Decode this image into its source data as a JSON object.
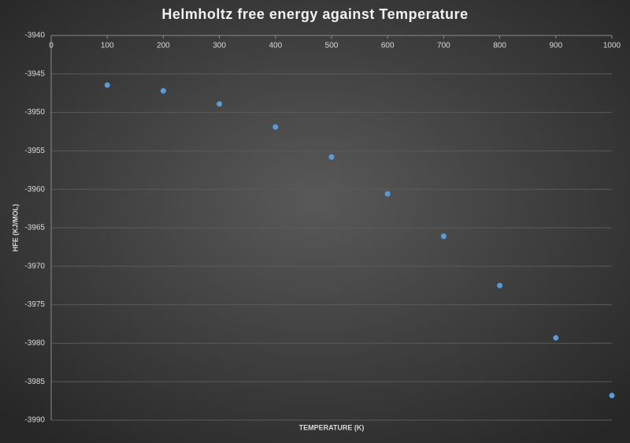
{
  "chart_data": {
    "type": "scatter",
    "title": "Helmholtz free energy against Temperature",
    "x_label": "TEMPERATURE (K)",
    "y_label": "HFE (KJ/MOL)",
    "x": [
      100,
      200,
      300,
      400,
      500,
      600,
      700,
      800,
      900,
      1000
    ],
    "values": [
      -3946.45,
      -3947.2,
      -3948.9,
      -3951.9,
      -3955.8,
      -3960.6,
      -3966.1,
      -3972.5,
      -3979.3,
      -3986.8
    ],
    "color": "#5b9bd5",
    "xlim": [
      0,
      1000
    ],
    "xticks": [
      0,
      100,
      200,
      300,
      400,
      500,
      600,
      700,
      800,
      900,
      1000
    ],
    "ylim": [
      -3990,
      -3940
    ],
    "yticks": [
      -3940,
      -3945,
      -3950,
      -3955,
      -3960,
      -3965,
      -3970,
      -3975,
      -3980,
      -3985,
      -3990
    ],
    "grid": true
  }
}
